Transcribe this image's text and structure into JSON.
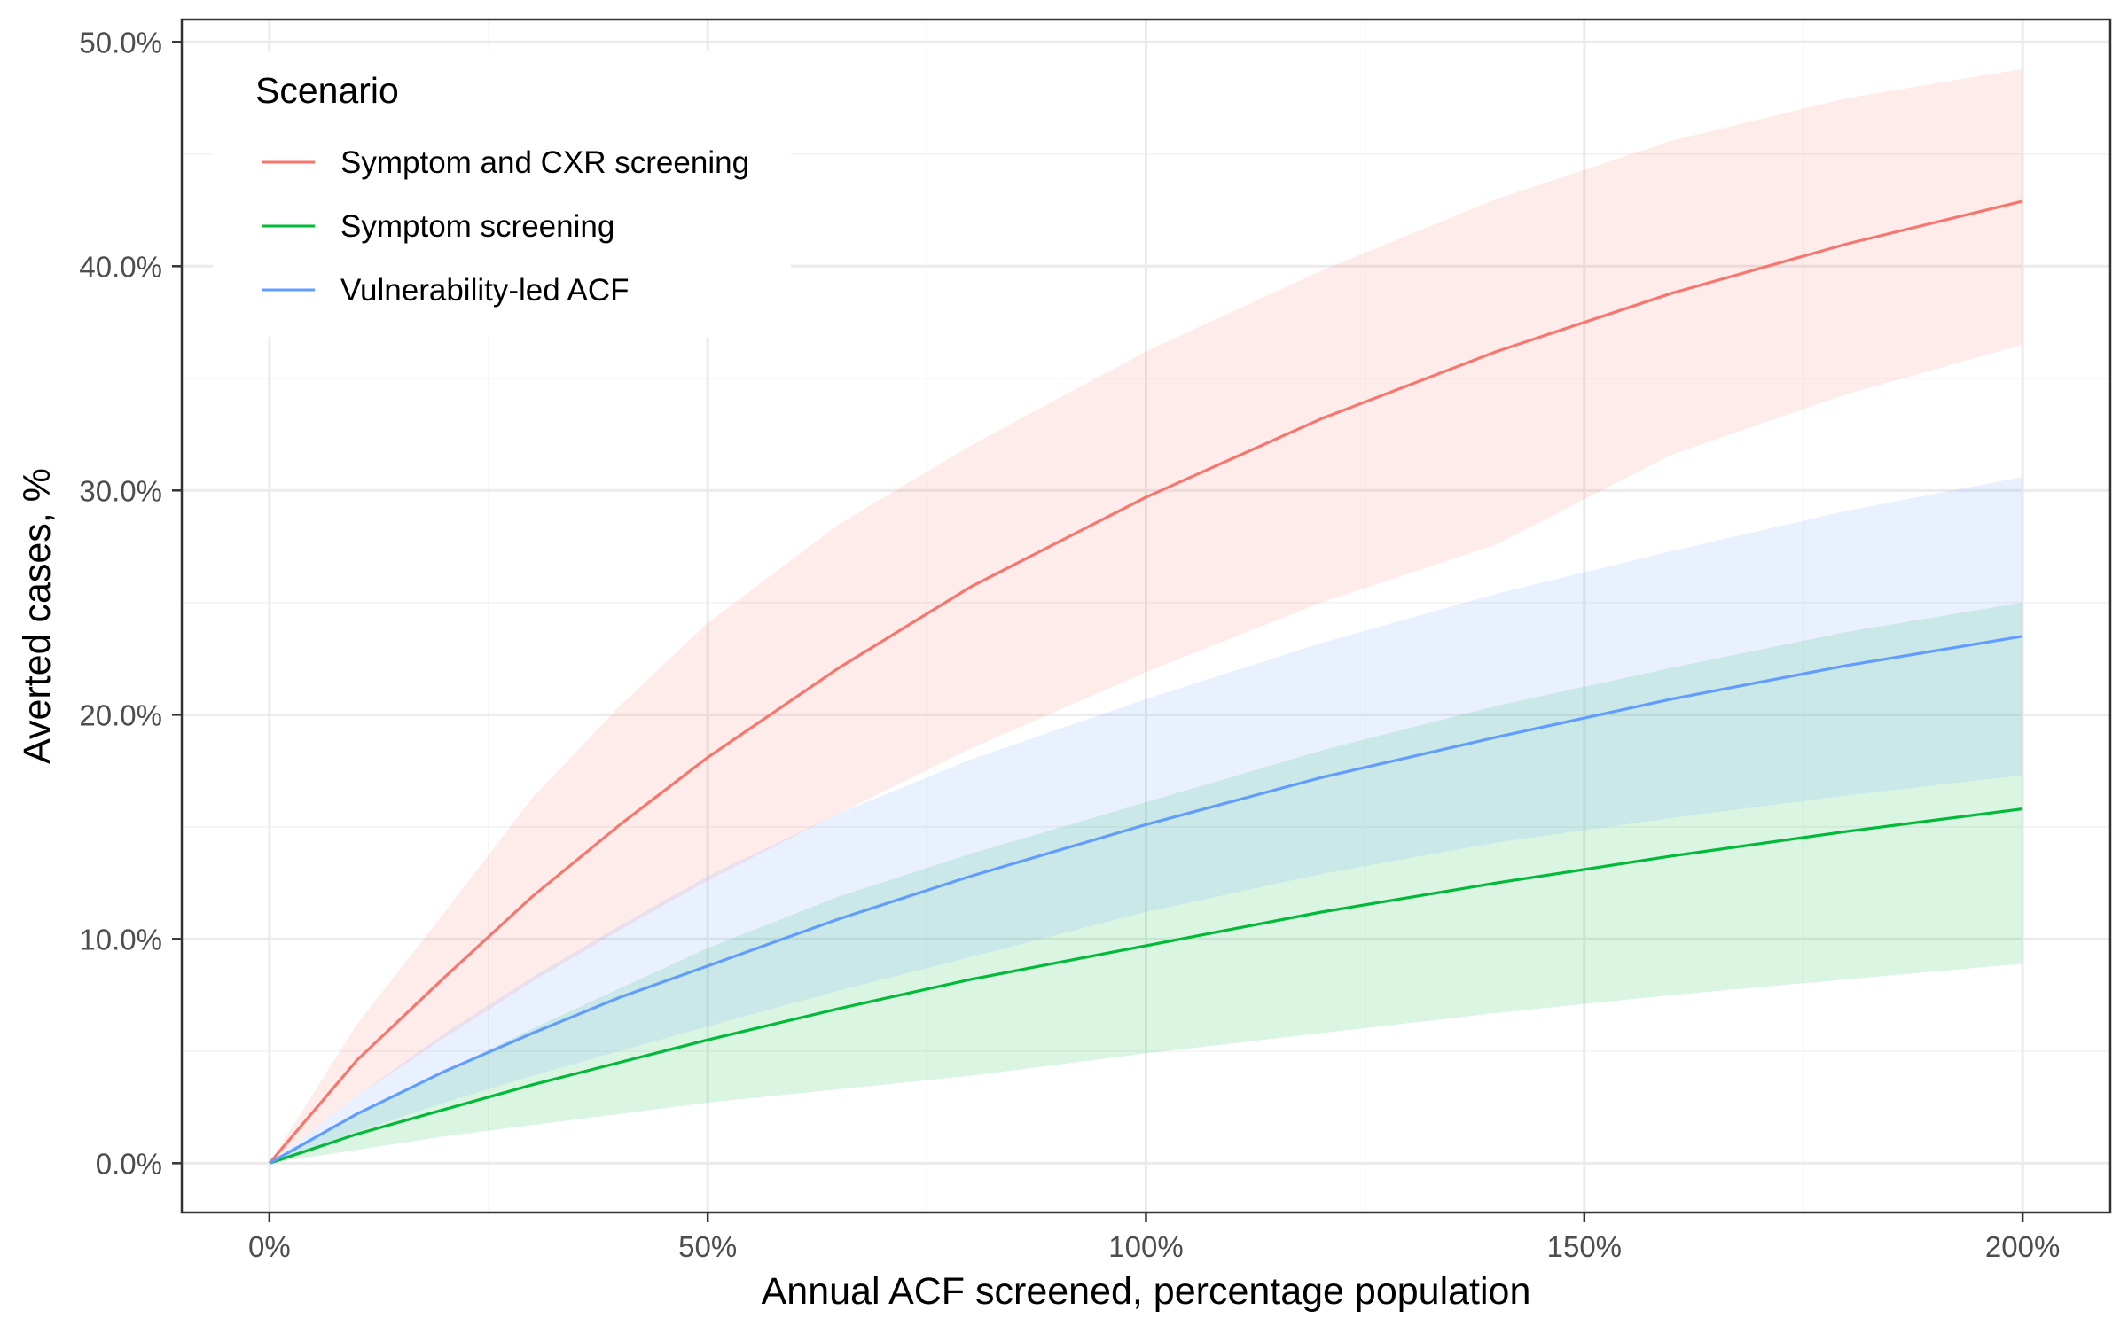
{
  "chart_data": {
    "type": "line",
    "xlabel": "Annual ACF screened, percentage population",
    "ylabel": "Averted cases, %",
    "xlim": [
      -0.1,
      2.1
    ],
    "ylim": [
      -0.022,
      0.51
    ],
    "x_ticks": [
      0,
      0.5,
      1.0,
      1.5,
      2.0
    ],
    "x_tick_labels": [
      "0%",
      "50%",
      "100%",
      "150%",
      "200%"
    ],
    "y_ticks": [
      0,
      0.1,
      0.2,
      0.3,
      0.4,
      0.5
    ],
    "y_tick_labels": [
      "0.0%",
      "10.0%",
      "20.0%",
      "30.0%",
      "40.0%",
      "50.0%"
    ],
    "grid": true,
    "legend": {
      "title": "Scenario",
      "placement": "top-left"
    },
    "series": [
      {
        "name": "Symptom and CXR screening",
        "color": "#f8766d",
        "band_color": "#ffe8e6",
        "x": [
          0,
          0.1,
          0.2,
          0.3,
          0.4,
          0.5,
          0.65,
          0.8,
          1.0,
          1.2,
          1.4,
          1.6,
          1.8,
          2.0
        ],
        "values": [
          0,
          0.046,
          0.083,
          0.119,
          0.151,
          0.181,
          0.221,
          0.257,
          0.297,
          0.332,
          0.362,
          0.388,
          0.41,
          0.429
        ],
        "lower": [
          0,
          0.03,
          0.056,
          0.081,
          0.104,
          0.126,
          0.156,
          0.185,
          0.219,
          0.25,
          0.276,
          0.316,
          0.343,
          0.365
        ],
        "upper": [
          0,
          0.062,
          0.112,
          0.163,
          0.204,
          0.241,
          0.285,
          0.32,
          0.362,
          0.398,
          0.43,
          0.456,
          0.475,
          0.488
        ]
      },
      {
        "name": "Symptom screening",
        "color": "#00ba38",
        "band_color": "#e3f5e7",
        "x": [
          0,
          0.1,
          0.2,
          0.3,
          0.4,
          0.5,
          0.65,
          0.8,
          1.0,
          1.2,
          1.4,
          1.6,
          1.8,
          2.0
        ],
        "values": [
          0,
          0.013,
          0.024,
          0.035,
          0.045,
          0.055,
          0.069,
          0.082,
          0.097,
          0.112,
          0.125,
          0.137,
          0.148,
          0.158
        ],
        "lower": [
          0,
          0.006,
          0.012,
          0.017,
          0.022,
          0.027,
          0.033,
          0.039,
          0.049,
          0.058,
          0.067,
          0.075,
          0.082,
          0.089
        ],
        "upper": [
          0,
          0.022,
          0.041,
          0.06,
          0.078,
          0.096,
          0.119,
          0.138,
          0.161,
          0.184,
          0.204,
          0.221,
          0.237,
          0.25
        ]
      },
      {
        "name": "Vulnerability-led ACF",
        "color": "#619cff",
        "band_color": "#e8f0ff",
        "x": [
          0,
          0.1,
          0.2,
          0.3,
          0.4,
          0.5,
          0.65,
          0.8,
          1.0,
          1.2,
          1.4,
          1.6,
          1.8,
          2.0
        ],
        "values": [
          0,
          0.022,
          0.041,
          0.058,
          0.074,
          0.088,
          0.109,
          0.128,
          0.151,
          0.172,
          0.19,
          0.207,
          0.222,
          0.235
        ],
        "lower": [
          0,
          0.014,
          0.027,
          0.039,
          0.05,
          0.061,
          0.077,
          0.092,
          0.112,
          0.129,
          0.143,
          0.154,
          0.164,
          0.173
        ],
        "upper": [
          0,
          0.03,
          0.058,
          0.083,
          0.106,
          0.128,
          0.156,
          0.18,
          0.207,
          0.232,
          0.254,
          0.273,
          0.291,
          0.306
        ]
      }
    ]
  }
}
